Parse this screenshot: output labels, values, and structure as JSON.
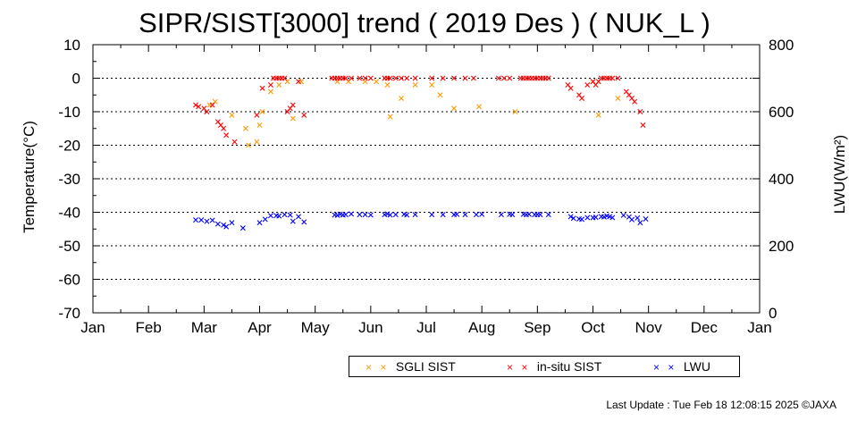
{
  "chart_data": {
    "type": "scatter",
    "title": "SIPR/SIST[3000] trend ( 2019 Des ) ( NUK_L )",
    "ylabel": "Temperature(°C)",
    "y2label": "LWU(W/m²)",
    "ylim": [
      -70,
      10
    ],
    "y2lim": [
      0,
      800
    ],
    "yticks": [
      10,
      0,
      -10,
      -20,
      -30,
      -40,
      -50,
      -60,
      -70
    ],
    "y2ticks": [
      800,
      600,
      400,
      200,
      0
    ],
    "y2tick_labels": [
      "800",
      "600",
      "400",
      "200",
      "0"
    ],
    "categories": [
      "Jan",
      "Feb",
      "Mar",
      "Apr",
      "May",
      "Jun",
      "Jul",
      "Aug",
      "Sep",
      "Oct",
      "Nov",
      "Dec",
      "Jan"
    ],
    "xlabel": "",
    "grid": "dotted horizontal at 0, -10, -20, -30, -40, -50, -60",
    "legend_position": "bottom",
    "series": [
      {
        "name": "SGLI SIST",
        "color": "#ff9900",
        "axis": "left",
        "points": [
          [
            2.1,
            -8
          ],
          [
            2.2,
            -7
          ],
          [
            2.5,
            -11
          ],
          [
            2.75,
            -15
          ],
          [
            2.8,
            -20
          ],
          [
            2.95,
            -19
          ],
          [
            3.0,
            -14
          ],
          [
            3.05,
            -10
          ],
          [
            3.2,
            -4
          ],
          [
            3.35,
            -2
          ],
          [
            3.5,
            -1
          ],
          [
            3.6,
            -12
          ],
          [
            3.75,
            -1
          ],
          [
            4.4,
            -1
          ],
          [
            4.6,
            -1
          ],
          [
            4.9,
            -1
          ],
          [
            5.1,
            -1
          ],
          [
            5.3,
            -2
          ],
          [
            5.35,
            -11.5
          ],
          [
            5.55,
            -6
          ],
          [
            5.8,
            -2
          ],
          [
            6.1,
            -2
          ],
          [
            6.25,
            -5
          ],
          [
            6.5,
            -9
          ],
          [
            6.95,
            -8.5
          ],
          [
            7.6,
            -10
          ],
          [
            9.0,
            -1
          ],
          [
            9.1,
            -11
          ],
          [
            9.45,
            -6
          ]
        ]
      },
      {
        "name": "in-situ SIST",
        "color": "#ff0000",
        "axis": "left",
        "points": [
          [
            1.85,
            -8
          ],
          [
            1.9,
            -8.5
          ],
          [
            2.0,
            -9
          ],
          [
            2.05,
            -10
          ],
          [
            2.15,
            -8
          ],
          [
            2.25,
            -13
          ],
          [
            2.3,
            -14
          ],
          [
            2.35,
            -15
          ],
          [
            2.4,
            -17
          ],
          [
            2.55,
            -19
          ],
          [
            2.95,
            -11
          ],
          [
            3.05,
            -3
          ],
          [
            3.2,
            -2
          ],
          [
            3.25,
            0
          ],
          [
            3.3,
            0
          ],
          [
            3.35,
            0
          ],
          [
            3.4,
            0
          ],
          [
            3.45,
            0
          ],
          [
            3.5,
            -10
          ],
          [
            3.55,
            -9
          ],
          [
            3.6,
            -8
          ],
          [
            3.7,
            -1
          ],
          [
            3.8,
            -11
          ],
          [
            4.3,
            0
          ],
          [
            4.35,
            0
          ],
          [
            4.4,
            0
          ],
          [
            4.45,
            0
          ],
          [
            4.5,
            0
          ],
          [
            4.55,
            0
          ],
          [
            4.65,
            0
          ],
          [
            4.8,
            0
          ],
          [
            4.9,
            0
          ],
          [
            5.0,
            0
          ],
          [
            5.25,
            0
          ],
          [
            5.3,
            0
          ],
          [
            5.35,
            0
          ],
          [
            5.45,
            0
          ],
          [
            5.55,
            0
          ],
          [
            5.65,
            0
          ],
          [
            5.8,
            0
          ],
          [
            6.1,
            0
          ],
          [
            6.3,
            0
          ],
          [
            6.5,
            0
          ],
          [
            6.7,
            0
          ],
          [
            6.85,
            0
          ],
          [
            7.3,
            0
          ],
          [
            7.4,
            0
          ],
          [
            7.5,
            0
          ],
          [
            7.7,
            0
          ],
          [
            7.75,
            0
          ],
          [
            7.8,
            0
          ],
          [
            7.85,
            0
          ],
          [
            7.9,
            0
          ],
          [
            7.95,
            0
          ],
          [
            8.0,
            0
          ],
          [
            8.05,
            0
          ],
          [
            8.1,
            0
          ],
          [
            8.15,
            0
          ],
          [
            8.2,
            0
          ],
          [
            8.55,
            -2
          ],
          [
            8.6,
            -3
          ],
          [
            8.75,
            -5
          ],
          [
            8.8,
            -6
          ],
          [
            8.9,
            -2
          ],
          [
            9.0,
            -1
          ],
          [
            9.05,
            -2
          ],
          [
            9.1,
            -1
          ],
          [
            9.15,
            0
          ],
          [
            9.2,
            0
          ],
          [
            9.25,
            0
          ],
          [
            9.3,
            0
          ],
          [
            9.35,
            0
          ],
          [
            9.45,
            0
          ],
          [
            9.6,
            -4
          ],
          [
            9.65,
            -5
          ],
          [
            9.7,
            -6
          ],
          [
            9.75,
            -7
          ],
          [
            9.85,
            -10
          ],
          [
            9.9,
            -14
          ]
        ]
      },
      {
        "name": "LWU",
        "color": "#0000ff",
        "axis": "right",
        "points": [
          [
            1.85,
            277
          ],
          [
            1.95,
            277
          ],
          [
            2.05,
            273
          ],
          [
            2.15,
            276
          ],
          [
            2.25,
            265
          ],
          [
            2.35,
            262
          ],
          [
            2.4,
            257
          ],
          [
            2.5,
            269
          ],
          [
            2.7,
            253
          ],
          [
            3.0,
            269
          ],
          [
            3.1,
            279
          ],
          [
            3.2,
            290
          ],
          [
            3.3,
            290
          ],
          [
            3.35,
            289
          ],
          [
            3.45,
            293
          ],
          [
            3.55,
            292
          ],
          [
            3.6,
            273
          ],
          [
            3.7,
            287
          ],
          [
            3.8,
            271
          ],
          [
            4.35,
            292
          ],
          [
            4.4,
            291
          ],
          [
            4.45,
            294
          ],
          [
            4.5,
            292
          ],
          [
            4.55,
            293
          ],
          [
            4.65,
            295
          ],
          [
            4.8,
            293
          ],
          [
            4.9,
            293
          ],
          [
            5.0,
            292
          ],
          [
            5.25,
            293
          ],
          [
            5.3,
            295
          ],
          [
            5.35,
            292
          ],
          [
            5.45,
            293
          ],
          [
            5.6,
            294
          ],
          [
            5.65,
            292
          ],
          [
            5.8,
            293
          ],
          [
            6.1,
            293
          ],
          [
            6.3,
            293
          ],
          [
            6.5,
            293
          ],
          [
            6.55,
            294
          ],
          [
            6.7,
            293
          ],
          [
            6.9,
            293
          ],
          [
            7.0,
            294
          ],
          [
            7.35,
            293
          ],
          [
            7.5,
            294
          ],
          [
            7.55,
            293
          ],
          [
            7.75,
            294
          ],
          [
            7.8,
            293
          ],
          [
            7.85,
            294
          ],
          [
            7.95,
            293
          ],
          [
            8.0,
            293
          ],
          [
            8.05,
            293
          ],
          [
            8.2,
            293
          ],
          [
            8.6,
            287
          ],
          [
            8.65,
            282
          ],
          [
            8.75,
            280
          ],
          [
            8.8,
            279
          ],
          [
            8.9,
            284
          ],
          [
            9.0,
            284
          ],
          [
            9.05,
            285
          ],
          [
            9.15,
            287
          ],
          [
            9.2,
            286
          ],
          [
            9.25,
            289
          ],
          [
            9.3,
            287
          ],
          [
            9.35,
            284
          ],
          [
            9.55,
            291
          ],
          [
            9.65,
            286
          ],
          [
            9.7,
            278
          ],
          [
            9.8,
            283
          ],
          [
            9.85,
            269
          ],
          [
            9.95,
            280
          ]
        ]
      }
    ]
  },
  "legend": {
    "sgli_label": "SGLI SIST",
    "insitu_label": "in-situ SIST",
    "lwu_label": "LWU",
    "marker": "× ×"
  },
  "footer": {
    "text": "Last Update : Tue Feb 18 12:08:15 2025  ©JAXA"
  }
}
